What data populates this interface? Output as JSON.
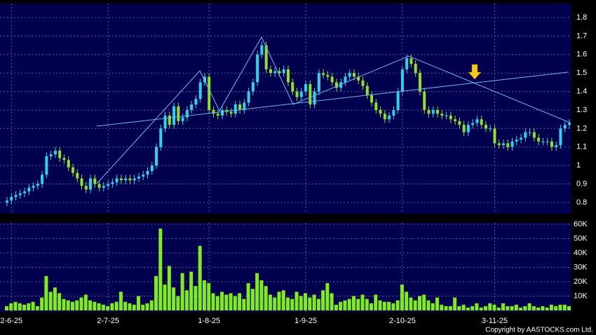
{
  "chart_data": {
    "type": "candlestick",
    "categories": [
      null,
      "2-6-25",
      null,
      null,
      null,
      null,
      null,
      null,
      null,
      null,
      null,
      null,
      null,
      null,
      null,
      null,
      null,
      null,
      null,
      null,
      null,
      null,
      null,
      "2-7-25",
      null,
      null,
      null,
      null,
      null,
      null,
      null,
      null,
      null,
      null,
      null,
      null,
      null,
      null,
      null,
      null,
      null,
      null,
      null,
      null,
      null,
      null,
      "1-8-25",
      null,
      null,
      null,
      null,
      null,
      null,
      null,
      null,
      null,
      null,
      null,
      null,
      null,
      null,
      null,
      null,
      null,
      null,
      null,
      null,
      null,
      "1-9-25",
      null,
      null,
      null,
      null,
      null,
      null,
      null,
      null,
      null,
      null,
      null,
      null,
      null,
      null,
      null,
      null,
      null,
      null,
      null,
      null,
      null,
      "2-10-25",
      null,
      null,
      null,
      null,
      null,
      null,
      null,
      null,
      null,
      null,
      null,
      null,
      null,
      null,
      null,
      null,
      null,
      null,
      null,
      null,
      "3-11-25",
      null,
      null,
      null,
      null,
      null,
      null,
      null,
      null,
      null,
      null,
      null,
      null,
      null,
      null,
      null,
      null,
      null
    ],
    "open": [
      0.8,
      0.81,
      0.83,
      0.84,
      0.85,
      0.86,
      0.88,
      0.89,
      0.9,
      0.95,
      1.05,
      1.06,
      1.08,
      1.04,
      1.03,
      0.99,
      0.96,
      0.93,
      0.89,
      0.87,
      0.93,
      0.9,
      0.88,
      0.89,
      0.9,
      0.91,
      0.93,
      0.92,
      0.93,
      0.92,
      0.93,
      0.94,
      0.95,
      0.97,
      1.0,
      1.1,
      1.2,
      1.27,
      1.22,
      1.32,
      1.24,
      1.26,
      1.3,
      1.33,
      1.36,
      1.45,
      1.48,
      1.3,
      1.28,
      1.27,
      1.3,
      1.29,
      1.28,
      1.33,
      1.3,
      1.34,
      1.4,
      1.45,
      1.6,
      1.65,
      1.52,
      1.5,
      1.51,
      1.5,
      1.52,
      1.45,
      1.4,
      1.37,
      1.4,
      1.44,
      1.33,
      1.4,
      1.5,
      1.49,
      1.48,
      1.45,
      1.42,
      1.45,
      1.48,
      1.5,
      1.48,
      1.46,
      1.43,
      1.38,
      1.34,
      1.3,
      1.28,
      1.25,
      1.27,
      1.3,
      1.4,
      1.52,
      1.58,
      1.55,
      1.5,
      1.4,
      1.3,
      1.28,
      1.3,
      1.28,
      1.27,
      1.27,
      1.25,
      1.24,
      1.22,
      1.18,
      1.22,
      1.23,
      1.25,
      1.22,
      1.2,
      1.2,
      1.12,
      1.11,
      1.12,
      1.1,
      1.13,
      1.14,
      1.15,
      1.18,
      1.18,
      1.15,
      1.13,
      1.13,
      1.13,
      1.1,
      1.11,
      1.2,
      1.22
    ],
    "high": [
      0.83,
      0.85,
      0.86,
      0.87,
      0.88,
      0.9,
      0.91,
      0.92,
      0.97,
      1.07,
      1.08,
      1.1,
      1.1,
      1.06,
      1.05,
      1.01,
      0.98,
      0.95,
      0.91,
      0.95,
      0.95,
      0.92,
      0.91,
      0.92,
      0.93,
      0.95,
      0.95,
      0.95,
      0.95,
      0.95,
      0.96,
      0.97,
      0.99,
      1.02,
      1.12,
      1.22,
      1.29,
      1.29,
      1.34,
      1.34,
      1.28,
      1.32,
      1.35,
      1.38,
      1.47,
      1.5,
      1.5,
      1.32,
      1.3,
      1.32,
      1.32,
      1.31,
      1.35,
      1.35,
      1.36,
      1.42,
      1.47,
      1.62,
      1.67,
      1.67,
      1.54,
      1.53,
      1.53,
      1.54,
      1.54,
      1.47,
      1.42,
      1.42,
      1.46,
      1.46,
      1.42,
      1.52,
      1.52,
      1.51,
      1.5,
      1.47,
      1.47,
      1.5,
      1.52,
      1.52,
      1.5,
      1.48,
      1.45,
      1.4,
      1.36,
      1.32,
      1.3,
      1.29,
      1.32,
      1.42,
      1.54,
      1.6,
      1.6,
      1.57,
      1.52,
      1.42,
      1.32,
      1.32,
      1.32,
      1.3,
      1.29,
      1.29,
      1.27,
      1.26,
      1.24,
      1.24,
      1.25,
      1.27,
      1.27,
      1.24,
      1.22,
      1.22,
      1.14,
      1.14,
      1.14,
      1.15,
      1.16,
      1.17,
      1.2,
      1.2,
      1.2,
      1.17,
      1.15,
      1.15,
      1.15,
      1.13,
      1.22,
      1.24,
      1.25
    ],
    "low": [
      0.78,
      0.79,
      0.81,
      0.82,
      0.83,
      0.84,
      0.86,
      0.87,
      0.88,
      0.93,
      1.03,
      1.04,
      1.02,
      1.01,
      0.97,
      0.94,
      0.91,
      0.87,
      0.85,
      0.85,
      0.88,
      0.86,
      0.86,
      0.87,
      0.88,
      0.89,
      0.9,
      0.9,
      0.9,
      0.9,
      0.91,
      0.92,
      0.93,
      0.95,
      0.98,
      1.08,
      1.18,
      1.2,
      1.2,
      1.22,
      1.22,
      1.24,
      1.28,
      1.31,
      1.34,
      1.43,
      1.28,
      1.26,
      1.25,
      1.25,
      1.27,
      1.26,
      1.26,
      1.28,
      1.28,
      1.32,
      1.38,
      1.43,
      1.58,
      1.5,
      1.48,
      1.48,
      1.48,
      1.48,
      1.43,
      1.38,
      1.35,
      1.35,
      1.38,
      1.31,
      1.31,
      1.38,
      1.47,
      1.46,
      1.43,
      1.4,
      1.4,
      1.43,
      1.46,
      1.46,
      1.44,
      1.41,
      1.36,
      1.32,
      1.28,
      1.26,
      1.23,
      1.23,
      1.25,
      1.28,
      1.38,
      1.5,
      1.53,
      1.48,
      1.38,
      1.28,
      1.26,
      1.26,
      1.26,
      1.25,
      1.25,
      1.23,
      1.22,
      1.2,
      1.16,
      1.16,
      1.2,
      1.21,
      1.2,
      1.18,
      1.18,
      1.1,
      1.09,
      1.09,
      1.08,
      1.08,
      1.11,
      1.12,
      1.13,
      1.16,
      1.13,
      1.11,
      1.11,
      1.11,
      1.08,
      1.08,
      1.09,
      1.18,
      1.2
    ],
    "close": [
      0.81,
      0.83,
      0.84,
      0.85,
      0.86,
      0.88,
      0.89,
      0.9,
      0.95,
      1.05,
      1.06,
      1.08,
      1.04,
      1.03,
      0.99,
      0.96,
      0.93,
      0.89,
      0.87,
      0.93,
      0.9,
      0.88,
      0.89,
      0.9,
      0.91,
      0.93,
      0.92,
      0.93,
      0.92,
      0.93,
      0.94,
      0.95,
      0.97,
      1.0,
      1.1,
      1.2,
      1.27,
      1.22,
      1.32,
      1.24,
      1.26,
      1.3,
      1.33,
      1.36,
      1.45,
      1.48,
      1.3,
      1.28,
      1.27,
      1.3,
      1.29,
      1.28,
      1.33,
      1.3,
      1.34,
      1.4,
      1.45,
      1.6,
      1.65,
      1.52,
      1.5,
      1.51,
      1.5,
      1.52,
      1.45,
      1.4,
      1.37,
      1.4,
      1.44,
      1.33,
      1.4,
      1.5,
      1.49,
      1.48,
      1.45,
      1.42,
      1.45,
      1.48,
      1.5,
      1.48,
      1.46,
      1.43,
      1.38,
      1.34,
      1.3,
      1.28,
      1.25,
      1.27,
      1.3,
      1.4,
      1.52,
      1.58,
      1.55,
      1.5,
      1.4,
      1.3,
      1.28,
      1.3,
      1.28,
      1.27,
      1.27,
      1.25,
      1.24,
      1.22,
      1.18,
      1.22,
      1.23,
      1.25,
      1.22,
      1.2,
      1.2,
      1.12,
      1.11,
      1.12,
      1.1,
      1.13,
      1.14,
      1.15,
      1.18,
      1.18,
      1.15,
      1.13,
      1.13,
      1.13,
      1.1,
      1.11,
      1.2,
      1.22,
      1.23
    ],
    "up_color": "#2ad4ea",
    "down_color": "#8fe02a",
    "ylim": [
      0.739,
      1.876
    ],
    "yticks": [
      0.8,
      0.9,
      1,
      1.1,
      1.2,
      1.3,
      1.4,
      1.5,
      1.6,
      1.7,
      1.8
    ],
    "grid": true,
    "volume": {
      "color": "#7fec1c",
      "values": [
        3000,
        5000,
        6000,
        5000,
        4000,
        5000,
        6000,
        3000,
        9000,
        24000,
        13000,
        16000,
        12000,
        8000,
        7000,
        6000,
        7000,
        9000,
        11000,
        7000,
        6000,
        5000,
        4000,
        3000,
        5000,
        6000,
        13000,
        6000,
        5000,
        4000,
        10000,
        4000,
        5000,
        7000,
        24000,
        57000,
        18000,
        31000,
        16000,
        10000,
        26000,
        14000,
        27000,
        17000,
        45000,
        21000,
        19000,
        12000,
        10000,
        13000,
        11000,
        12000,
        10000,
        12000,
        8000,
        19000,
        15000,
        26000,
        21000,
        17000,
        11000,
        9000,
        13000,
        14000,
        9000,
        8000,
        13000,
        10000,
        12000,
        9000,
        11000,
        8000,
        14000,
        19000,
        12000,
        4000,
        6000,
        7000,
        8000,
        10000,
        8000,
        11000,
        8000,
        5000,
        11000,
        7000,
        6000,
        6000,
        5000,
        7000,
        18000,
        13000,
        9000,
        7000,
        10000,
        11000,
        7000,
        5000,
        9000,
        4000,
        3000,
        3000,
        9000,
        3000,
        4000,
        2000,
        3000,
        5000,
        2000,
        3000,
        5000,
        4000,
        2000,
        5000,
        3000,
        3000,
        4000,
        2000,
        3000,
        5000,
        3000,
        2000,
        3000,
        2000,
        4000,
        3000,
        4000,
        4000,
        3000
      ],
      "ylim": [
        -1000,
        61000
      ],
      "yticks": [
        {
          "value": 10000,
          "label": "10K"
        },
        {
          "value": 20000,
          "label": "20K"
        },
        {
          "value": 30000,
          "label": "30K"
        },
        {
          "value": 40000,
          "label": "40K"
        },
        {
          "value": 50000,
          "label": "50K"
        },
        {
          "value": 60000,
          "label": "60K"
        }
      ]
    },
    "copyright": "Copyright by AASTOCKS.com Ltd."
  }
}
